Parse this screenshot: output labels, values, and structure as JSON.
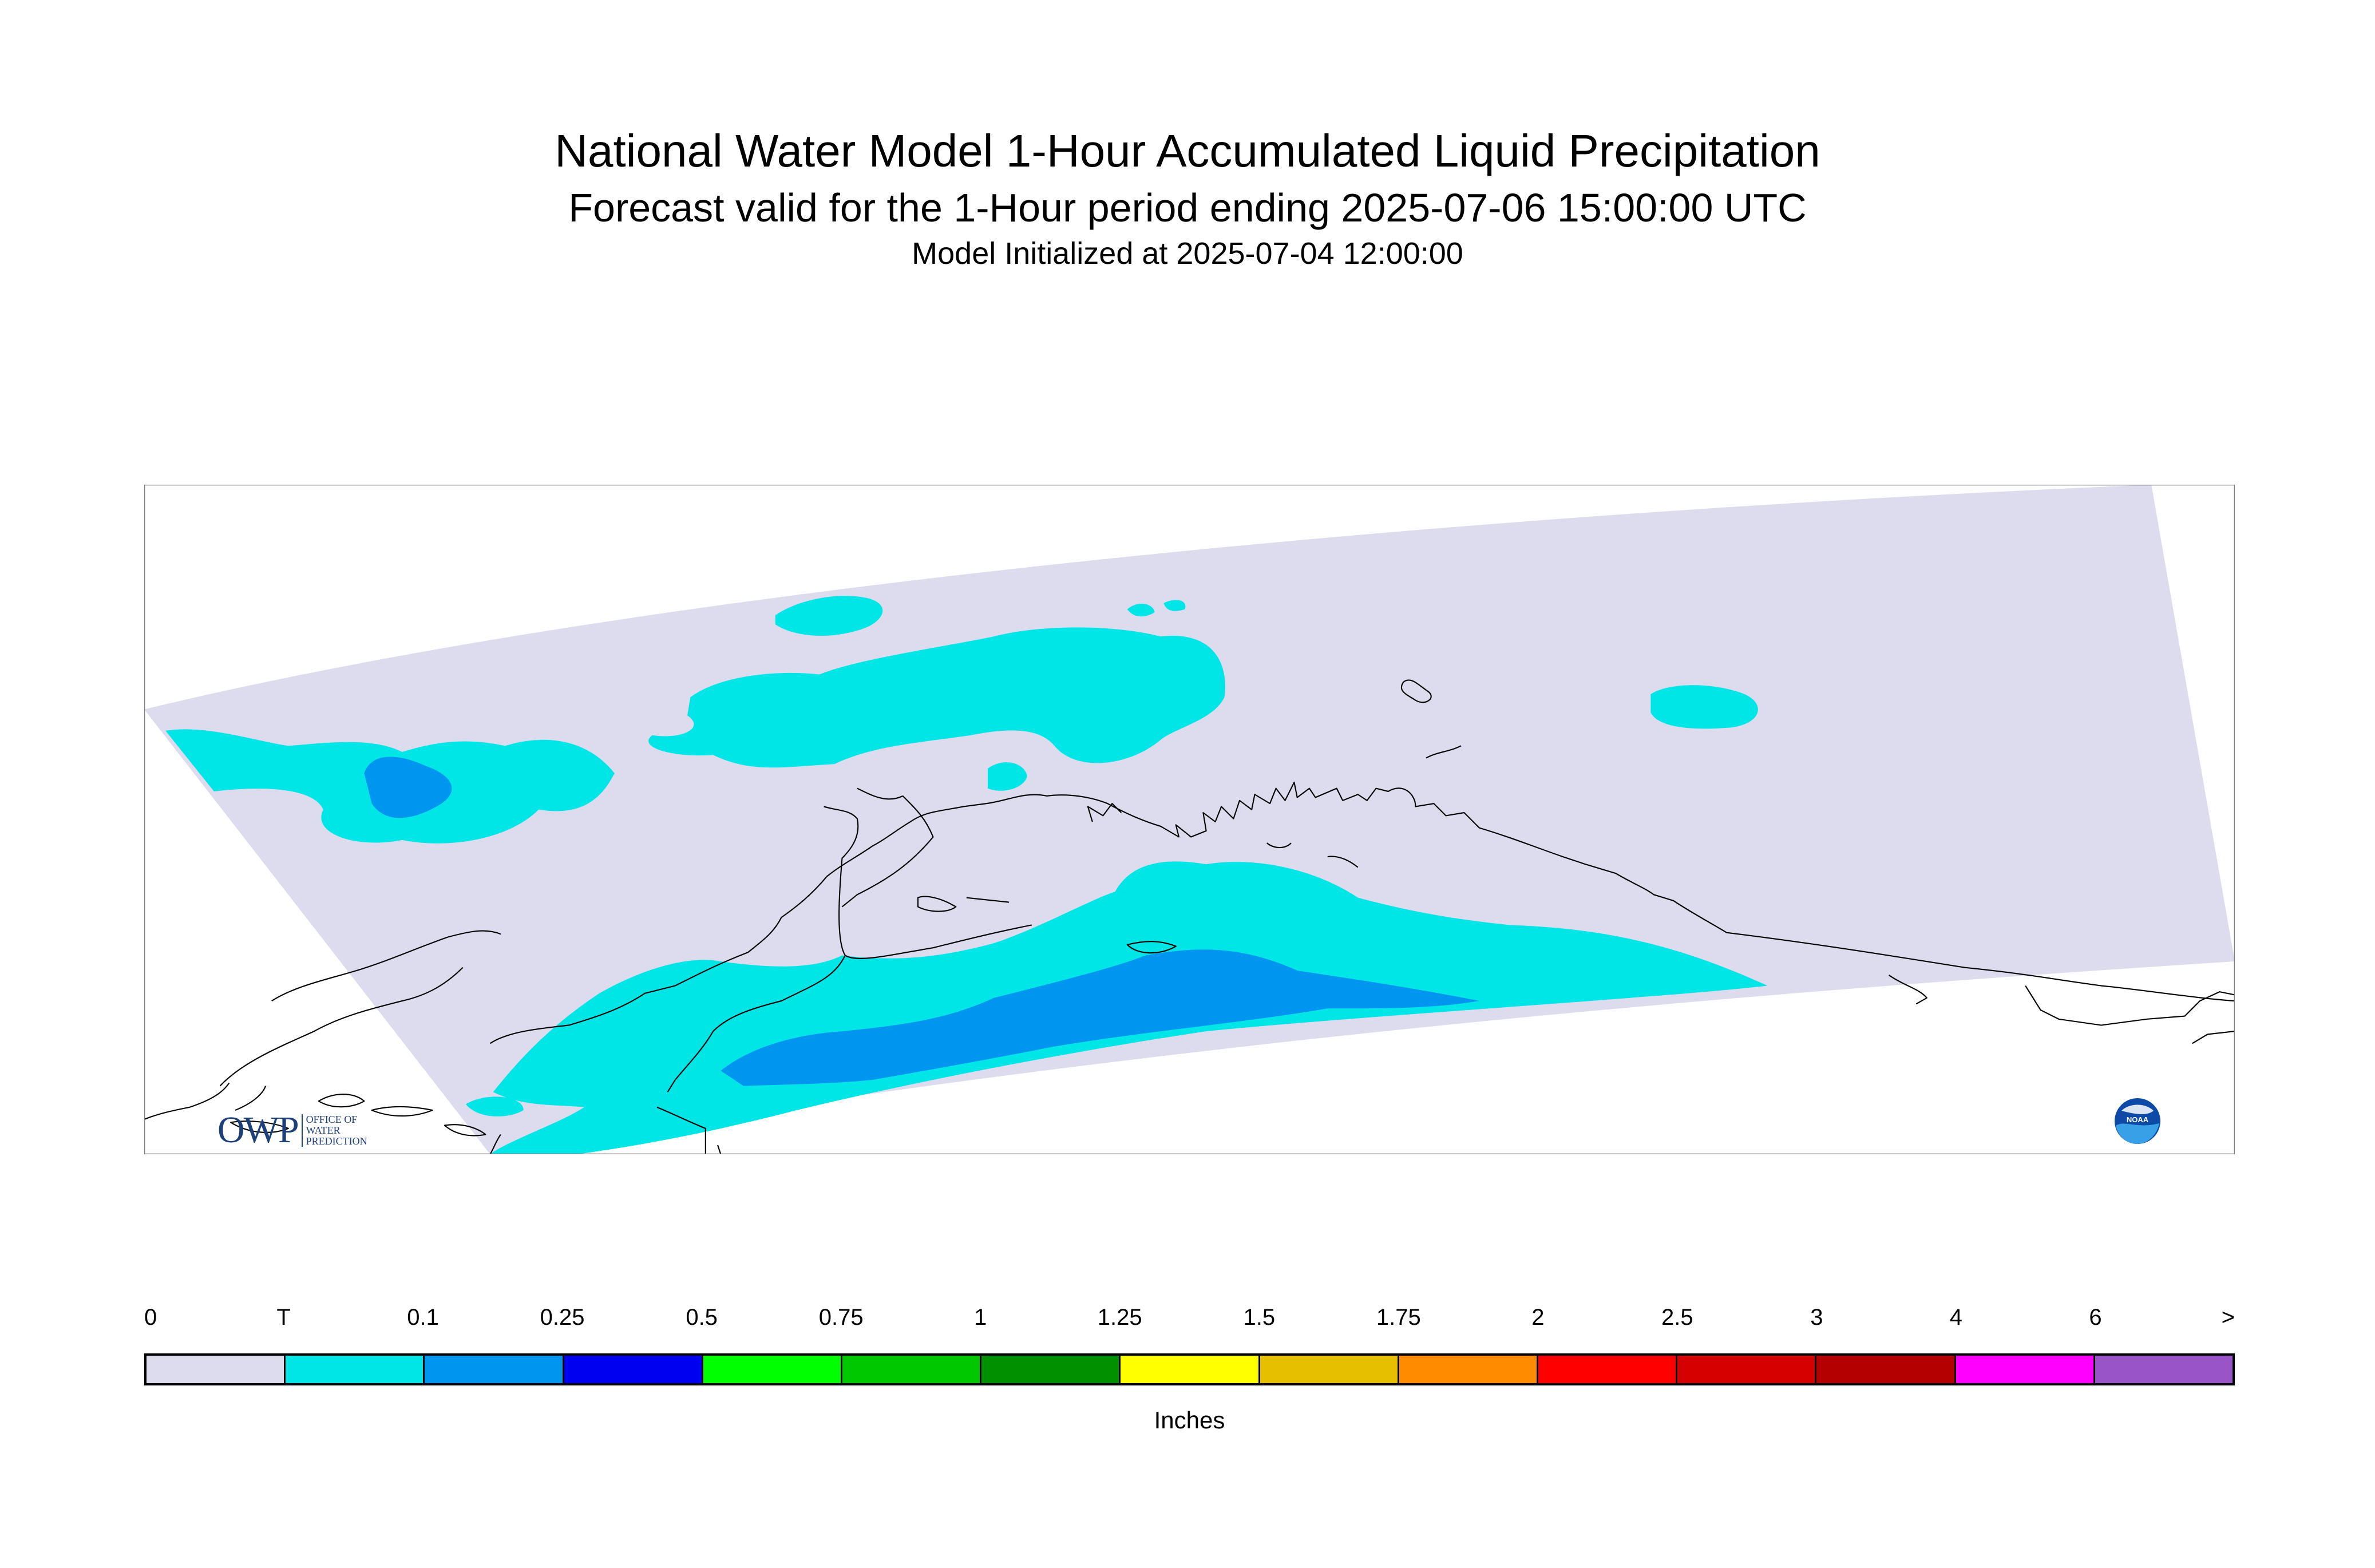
{
  "title": {
    "line1": "National Water Model 1-Hour Accumulated Liquid Precipitation",
    "line2": "Forecast valid for the 1-Hour period ending 2025-07-06 15:00:00 UTC",
    "line3": "Model Initialized at 2025-07-04 12:00:00"
  },
  "map": {
    "region": "Alaska",
    "domain_color": "#dcdcee",
    "coastline_color": "#000000",
    "precip_colors_present": [
      "#00e5e5",
      "#0096f0"
    ]
  },
  "legend": {
    "tick_labels": [
      "0",
      "T",
      "0.1",
      "0.25",
      "0.5",
      "0.75",
      "1",
      "1.25",
      "1.5",
      "1.75",
      "2",
      "2.5",
      "3",
      "4",
      "6",
      ">"
    ],
    "colors": [
      "#dcdcee",
      "#00e5e5",
      "#0096f0",
      "#0000f0",
      "#00ff00",
      "#00c800",
      "#009000",
      "#ffff00",
      "#e6c000",
      "#ff8c00",
      "#ff0000",
      "#d70000",
      "#b40000",
      "#ff00ff",
      "#9955c8"
    ],
    "units": "Inches"
  },
  "logos": {
    "owp_letters": "OWP",
    "owp_line1": "OFFICE OF",
    "owp_line2": "WATER",
    "owp_line3": "PREDICTION",
    "noaa_text": "NOAA"
  }
}
